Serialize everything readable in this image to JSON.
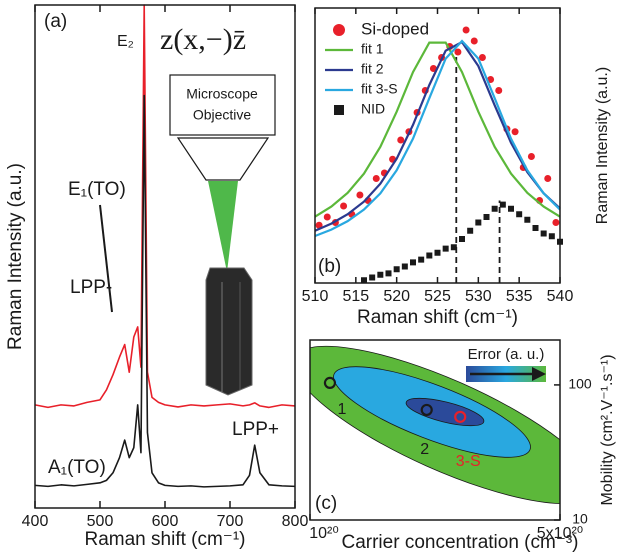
{
  "chart_data": [
    {
      "type": "line",
      "x_label": "Raman shift (cm⁻¹)",
      "y_label": "Raman Intensity (a.u.)",
      "annotations": {
        "panel": "(a)",
        "e2": "E₂",
        "geometry": "z(x,−)z̄",
        "e1": "E₁(TO)",
        "lpp_minus": "LPP-",
        "a1": "A₁(TO)",
        "lpp_plus": "LPP+",
        "objective": [
          "Microscope",
          "Objective"
        ]
      },
      "x": [
        400,
        420,
        440,
        460,
        480,
        500,
        510,
        520,
        530,
        538,
        545,
        552,
        558,
        563,
        568,
        573,
        580,
        590,
        600,
        620,
        640,
        660,
        680,
        700,
        720,
        730,
        738,
        746,
        760,
        780,
        800
      ],
      "series": [
        {
          "color": "#e8202a",
          "values": [
            20.5,
            20,
            20.5,
            20.3,
            21,
            21.5,
            23.5,
            26.5,
            30,
            32.5,
            27,
            34,
            36,
            28,
            100,
            27,
            22,
            21,
            20.5,
            20.1,
            20.5,
            20.3,
            20.5,
            20.7,
            20.3,
            20.5,
            20.9,
            20.3,
            20,
            20.5,
            20.3
          ]
        },
        {
          "color": "#1a1a1a",
          "values": [
            4.5,
            4.3,
            4.6,
            4.4,
            4.7,
            5,
            5.5,
            7,
            10,
            13.5,
            10,
            12,
            20.5,
            11,
            82,
            15,
            7,
            5,
            4.5,
            4.3,
            4.4,
            4.2,
            4.3,
            4.4,
            4.6,
            6.5,
            12.5,
            7,
            4.6,
            4.4,
            4.3
          ]
        }
      ],
      "xlim": [
        400,
        800
      ],
      "ylim": [
        0,
        100
      ],
      "xticks": [
        400,
        500,
        600,
        700,
        800
      ]
    },
    {
      "type": "scatter",
      "x_label": "Raman shift (cm⁻¹)",
      "y_label": "Raman Intensity (a.u.)",
      "annotations": {
        "panel": "(b)"
      },
      "legend": "upper left",
      "series": [
        {
          "name": "Si-doped",
          "color": "#e8202a",
          "marker": "circle",
          "x": [
            510.5,
            511.5,
            512.5,
            513.5,
            514.5,
            515.5,
            516.5,
            517.5,
            518.5,
            519.5,
            520.5,
            521.5,
            522.5,
            523.5,
            524.5,
            525.5,
            526.5,
            527.5,
            528.5,
            529.5,
            530.5,
            531.5,
            532.5,
            533.5,
            534.5,
            535.5,
            536.5,
            537.5,
            538.5,
            539.5
          ],
          "values": [
            21,
            24,
            22,
            28,
            25,
            32,
            30,
            38,
            40,
            45,
            52,
            55,
            62,
            70,
            78,
            82,
            86,
            84,
            92,
            88,
            82,
            74,
            70,
            56,
            55,
            42,
            46,
            30,
            38,
            22
          ]
        },
        {
          "name": "fit 1",
          "color": "#5cb83a",
          "marker": "line",
          "x": [
            510,
            512,
            514,
            516,
            518,
            520,
            522,
            524,
            526,
            528,
            530,
            532,
            534,
            536,
            538,
            540
          ],
          "values": [
            24.1,
            27.8,
            32.8,
            39.8,
            49.5,
            62.3,
            76.7,
            87.4,
            87.4,
            76.7,
            62.3,
            49.5,
            39.8,
            32.8,
            27.8,
            24.1
          ]
        },
        {
          "name": "fit 2",
          "color": "#2b3a8f",
          "marker": "line",
          "x": [
            510,
            512,
            514,
            516,
            518,
            520,
            522,
            524,
            526,
            528,
            530,
            532,
            534,
            536,
            538,
            540
          ],
          "values": [
            19,
            21.6,
            25,
            29.6,
            36.1,
            45.2,
            57.5,
            72,
            84.5,
            87.6,
            78.9,
            64.6,
            51,
            40.3,
            32.6,
            27.1
          ]
        },
        {
          "name": "fit 3-S",
          "color": "#29a8e0",
          "marker": "line",
          "x": [
            510,
            512,
            514,
            516,
            518,
            520,
            522,
            524,
            526,
            528,
            530,
            532,
            534,
            536,
            538,
            540
          ],
          "values": [
            17.1,
            19.4,
            22.5,
            26.7,
            32.6,
            41,
            52.5,
            67.2,
            81.6,
            88,
            81.6,
            67.2,
            52.5,
            41,
            32.6,
            26.7
          ]
        },
        {
          "name": "NID",
          "color": "#1a1a1a",
          "marker": "square",
          "x": [
            516,
            517,
            518,
            519,
            520,
            521,
            522,
            523,
            524,
            525,
            526,
            527,
            528,
            529,
            530,
            531,
            532,
            533,
            534,
            535,
            536,
            537,
            538,
            539,
            540
          ],
          "values": [
            1,
            2,
            3,
            3.5,
            5,
            6,
            7.5,
            8.5,
            10,
            11,
            12.5,
            13,
            16,
            19,
            22,
            24,
            27,
            28.5,
            27,
            25,
            23,
            20,
            18,
            17,
            15
          ]
        }
      ],
      "vlines": [
        527.3,
        532.6
      ],
      "xlim": [
        510,
        540
      ],
      "ylim": [
        0,
        100
      ],
      "xticks": [
        510,
        515,
        520,
        525,
        530,
        535,
        540
      ]
    },
    {
      "type": "contour",
      "x_label": "Carrier concentration (cm⁻³)",
      "y_label": "Mobility (cm².V⁻¹.s⁻¹)",
      "annotations": {
        "panel": "(c)",
        "error": "Error (a. u.)"
      },
      "series": [
        {
          "x": [
            1.137e+20,
            2.12e+20,
            2.63e+20
          ],
          "values": [
            103.5,
            65.3,
            58.0
          ],
          "colors": [
            "#1a1a1a",
            "#1a1a1a",
            "#e8202a"
          ],
          "labels": [
            "1",
            "2",
            "3-S"
          ]
        }
      ],
      "xscale": "log",
      "yscale": "log",
      "xlim": [
        1e+20,
        5e+20
      ],
      "ylim": [
        10,
        215
      ],
      "xticks": [
        {
          "value": 1e+20,
          "label": "10²⁰"
        },
        {
          "value": 5e+20,
          "label": "5x10²⁰"
        }
      ],
      "yticks": [
        10,
        100
      ]
    }
  ]
}
